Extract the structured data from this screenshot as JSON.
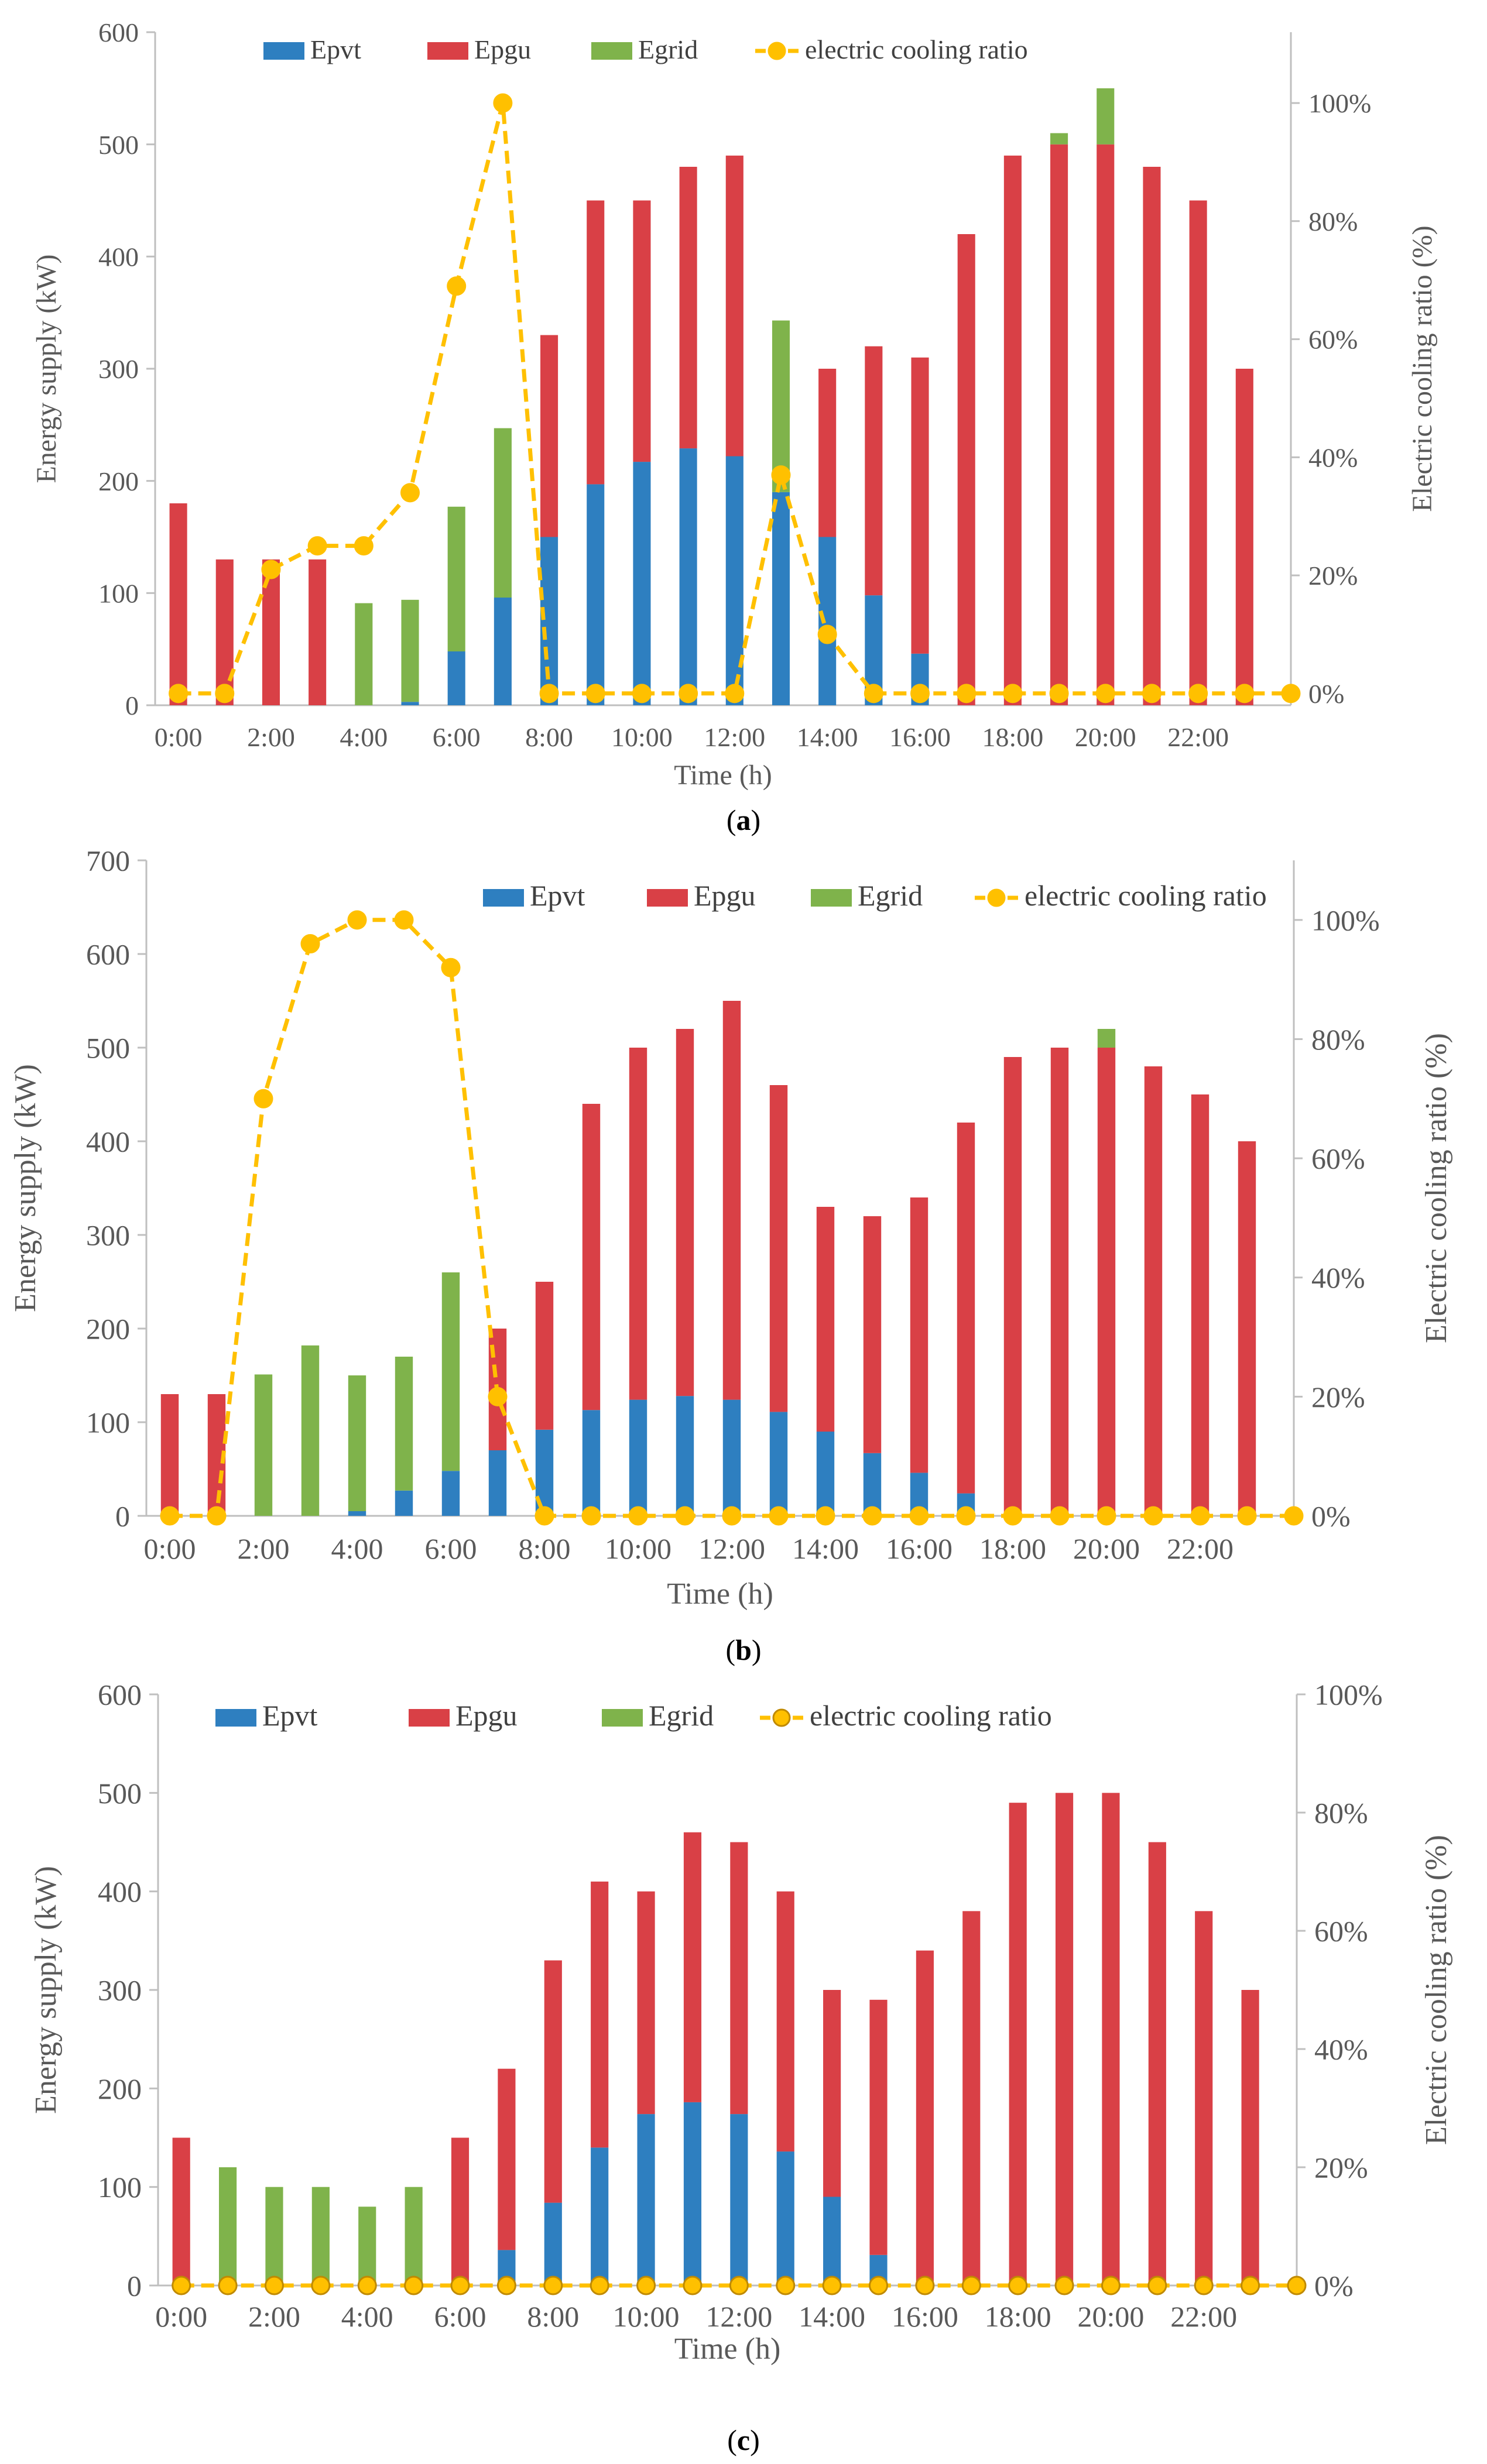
{
  "colors": {
    "epvt": "#2E7FC0",
    "epgu": "#D94046",
    "egrid": "#7FB34B",
    "ratio": "#FFC000",
    "axis": "#BFBFBF",
    "text": "#595959"
  },
  "chart_data": [
    {
      "id": "a",
      "type": "bar",
      "stacked": true,
      "caption_label": "a",
      "legend_layout": "top-left",
      "xlabel": "Time (h)",
      "ylabel": "Energy supply (kW)",
      "y2label": "Electric cooling ratio (%)",
      "ylim": [
        0,
        600
      ],
      "yticks": [
        "0",
        "100",
        "200",
        "300",
        "400",
        "500",
        "600"
      ],
      "y2lim": [
        -0.02,
        1.12
      ],
      "y2ticks": [
        {
          "v": 0,
          "label": "0%"
        },
        {
          "v": 0.2,
          "label": "20%"
        },
        {
          "v": 0.4,
          "label": "40%"
        },
        {
          "v": 0.6,
          "label": "60%"
        },
        {
          "v": 0.8,
          "label": "80%"
        },
        {
          "v": 1.0,
          "label": "100%"
        }
      ],
      "categories": [
        "0:00",
        "1:00",
        "2:00",
        "3:00",
        "4:00",
        "5:00",
        "6:00",
        "7:00",
        "8:00",
        "9:00",
        "10:00",
        "11:00",
        "12:00",
        "13:00",
        "14:00",
        "15:00",
        "16:00",
        "17:00",
        "18:00",
        "19:00",
        "20:00",
        "21:00",
        "22:00",
        "23:00"
      ],
      "xtick_labels": [
        "0:00",
        "2:00",
        "4:00",
        "6:00",
        "8:00",
        "10:00",
        "12:00",
        "14:00",
        "16:00",
        "18:00",
        "20:00",
        "22:00"
      ],
      "legend": [
        "Epvt",
        "Epgu",
        "Egrid",
        "electric cooling ratio"
      ],
      "series": [
        {
          "name": "Epvt",
          "values": [
            0,
            0,
            0,
            0,
            0,
            3,
            48,
            96,
            150,
            197,
            217,
            229,
            222,
            190,
            150,
            98,
            46,
            0,
            0,
            0,
            0,
            0,
            0,
            0
          ]
        },
        {
          "name": "Epgu",
          "values": [
            180,
            130,
            130,
            130,
            0,
            0,
            0,
            0,
            180,
            253,
            233,
            251,
            268,
            0,
            150,
            222,
            264,
            420,
            490,
            500,
            500,
            480,
            450,
            300
          ]
        },
        {
          "name": "Egrid",
          "values": [
            0,
            0,
            0,
            0,
            91,
            91,
            129,
            151,
            0,
            0,
            0,
            0,
            0,
            153,
            0,
            0,
            0,
            0,
            0,
            10,
            50,
            0,
            0,
            0
          ]
        }
      ],
      "ratio": {
        "name": "electric cooling ratio",
        "x": [
          0,
          1,
          2,
          3,
          4,
          5,
          6,
          7,
          8,
          9,
          10,
          11,
          12,
          13,
          14,
          15,
          16,
          17,
          18,
          19,
          20,
          21,
          22,
          23,
          24
        ],
        "values": [
          0,
          0,
          0.21,
          0.25,
          0.25,
          0.34,
          0.69,
          1.0,
          0,
          0,
          0,
          0,
          0,
          0.37,
          0.1,
          0,
          0,
          0,
          0,
          0,
          0,
          0,
          0,
          0,
          0
        ]
      }
    },
    {
      "id": "b",
      "type": "bar",
      "stacked": true,
      "caption_label": "b",
      "legend_layout": "top-right",
      "xlabel": "Time (h)",
      "ylabel": "Energy supply (kW)",
      "y2label": "Electric cooling ratio (%)",
      "ylim": [
        0,
        700
      ],
      "yticks": [
        "0",
        "100",
        "200",
        "300",
        "400",
        "500",
        "600",
        "700"
      ],
      "y2lim": [
        0,
        1.1
      ],
      "y2ticks": [
        {
          "v": 0,
          "label": "0%"
        },
        {
          "v": 0.2,
          "label": "20%"
        },
        {
          "v": 0.4,
          "label": "40%"
        },
        {
          "v": 0.6,
          "label": "60%"
        },
        {
          "v": 0.8,
          "label": "80%"
        },
        {
          "v": 1.0,
          "label": "100%"
        }
      ],
      "categories": [
        "0:00",
        "1:00",
        "2:00",
        "3:00",
        "4:00",
        "5:00",
        "6:00",
        "7:00",
        "8:00",
        "9:00",
        "10:00",
        "11:00",
        "12:00",
        "13:00",
        "14:00",
        "15:00",
        "16:00",
        "17:00",
        "18:00",
        "19:00",
        "20:00",
        "21:00",
        "22:00",
        "23:00"
      ],
      "xtick_labels": [
        "0:00",
        "2:00",
        "4:00",
        "6:00",
        "8:00",
        "10:00",
        "12:00",
        "14:00",
        "16:00",
        "18:00",
        "20:00",
        "22:00"
      ],
      "legend": [
        "Epvt",
        "Epgu",
        "Egrid",
        "electric cooling ratio"
      ],
      "series": [
        {
          "name": "Epvt",
          "values": [
            0,
            0,
            0,
            0,
            5,
            27,
            48,
            70,
            92,
            113,
            124,
            128,
            124,
            111,
            90,
            67,
            46,
            24,
            0,
            0,
            0,
            0,
            0,
            0
          ]
        },
        {
          "name": "Epgu",
          "values": [
            130,
            130,
            0,
            0,
            0,
            0,
            0,
            130,
            158,
            327,
            376,
            392,
            426,
            349,
            240,
            253,
            294,
            396,
            490,
            500,
            500,
            480,
            450,
            400
          ]
        },
        {
          "name": "Egrid",
          "values": [
            0,
            0,
            151,
            182,
            145,
            143,
            212,
            0,
            0,
            0,
            0,
            0,
            0,
            0,
            0,
            0,
            0,
            0,
            0,
            0,
            20,
            0,
            0,
            0
          ]
        }
      ],
      "ratio": {
        "name": "electric cooling ratio",
        "x": [
          0,
          1,
          2,
          3,
          4,
          5,
          6,
          7,
          8,
          9,
          10,
          11,
          12,
          13,
          14,
          15,
          16,
          17,
          18,
          19,
          20,
          21,
          22,
          23,
          24
        ],
        "values": [
          0,
          0,
          0.7,
          0.96,
          1.0,
          1.0,
          0.92,
          0.2,
          0,
          0,
          0,
          0,
          0,
          0,
          0,
          0,
          0,
          0,
          0,
          0,
          0,
          0,
          0,
          0,
          0
        ]
      }
    },
    {
      "id": "c",
      "type": "bar",
      "stacked": true,
      "caption_label": "c",
      "legend_layout": "top-left",
      "xlabel": "Time (h)",
      "ylabel": "Energy supply (kW)",
      "y2label": "Electric cooling ratio (%)",
      "ylim": [
        0,
        600
      ],
      "yticks": [
        "0",
        "100",
        "200",
        "300",
        "400",
        "500",
        "600"
      ],
      "y2lim": [
        0,
        1.0
      ],
      "y2ticks": [
        {
          "v": 0,
          "label": "0%"
        },
        {
          "v": 0.2,
          "label": "20%"
        },
        {
          "v": 0.4,
          "label": "40%"
        },
        {
          "v": 0.6,
          "label": "60%"
        },
        {
          "v": 0.8,
          "label": "80%"
        },
        {
          "v": 1.0,
          "label": "100%"
        }
      ],
      "categories": [
        "0:00",
        "1:00",
        "2:00",
        "3:00",
        "4:00",
        "5:00",
        "6:00",
        "7:00",
        "8:00",
        "9:00",
        "10:00",
        "11:00",
        "12:00",
        "13:00",
        "14:00",
        "15:00",
        "16:00",
        "17:00",
        "18:00",
        "19:00",
        "20:00",
        "21:00",
        "22:00",
        "23:00"
      ],
      "xtick_labels": [
        "0:00",
        "2:00",
        "4:00",
        "6:00",
        "8:00",
        "10:00",
        "12:00",
        "14:00",
        "16:00",
        "18:00",
        "20:00",
        "22:00"
      ],
      "legend": [
        "Epvt",
        "Epgu",
        "Egrid",
        "electric cooling ratio"
      ],
      "series": [
        {
          "name": "Epvt",
          "values": [
            0,
            0,
            0,
            0,
            0,
            0,
            0,
            36,
            84,
            140,
            174,
            186,
            174,
            136,
            90,
            31,
            0,
            0,
            0,
            0,
            0,
            0,
            0,
            0
          ]
        },
        {
          "name": "Epgu",
          "values": [
            150,
            0,
            0,
            0,
            0,
            0,
            150,
            184,
            246,
            270,
            226,
            274,
            276,
            264,
            210,
            259,
            340,
            380,
            490,
            500,
            500,
            450,
            380,
            300
          ]
        },
        {
          "name": "Egrid",
          "values": [
            0,
            120,
            100,
            100,
            80,
            100,
            0,
            0,
            0,
            0,
            0,
            0,
            0,
            0,
            0,
            0,
            0,
            0,
            0,
            0,
            0,
            0,
            0,
            0
          ]
        }
      ],
      "ratio": {
        "name": "electric cooling ratio",
        "x": [
          0,
          1,
          2,
          3,
          4,
          5,
          6,
          7,
          8,
          9,
          10,
          11,
          12,
          13,
          14,
          15,
          16,
          17,
          18,
          19,
          20,
          21,
          22,
          23,
          24
        ],
        "values": [
          0,
          0,
          0,
          0,
          0,
          0,
          0,
          0,
          0,
          0,
          0,
          0,
          0,
          0,
          0,
          0,
          0,
          0,
          0,
          0,
          0,
          0,
          0,
          0,
          0
        ]
      }
    }
  ]
}
